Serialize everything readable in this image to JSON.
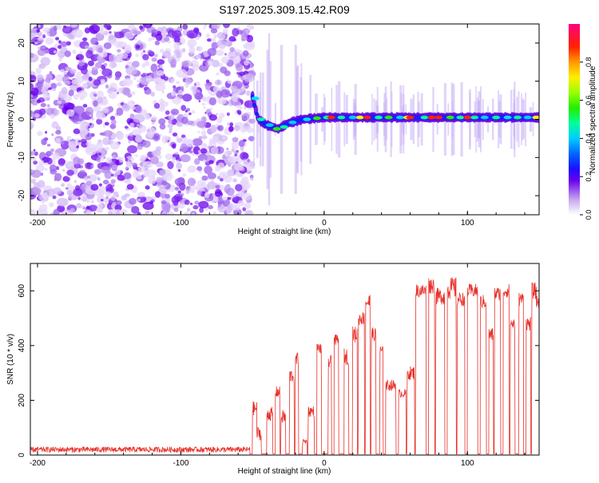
{
  "title": "S197.2025.309.15.42.R09",
  "chart_data": [
    {
      "type": "heatmap",
      "xlabel": "Height of straight line (km)",
      "ylabel": "Frequency (Hz)",
      "xlim": [
        -205,
        150
      ],
      "ylim": [
        -25,
        25
      ],
      "xticks": [
        -200,
        -100,
        0,
        100
      ],
      "xtick_labels": [
        "-200",
        "-100",
        "0",
        "100"
      ],
      "yticks": [
        -20,
        -10,
        0,
        10,
        20
      ],
      "ytick_labels": [
        "-20",
        "-10",
        "0",
        "10",
        "20"
      ],
      "colorbar": {
        "label": "Normalized spectral amplitude",
        "range": [
          0,
          1
        ],
        "ticks": [
          0,
          0.2,
          0.4,
          0.6,
          0.8
        ],
        "tick_labels": [
          "0.0",
          "0.2",
          "0.4",
          "0.6",
          "0.8"
        ]
      },
      "noise_region_x": [
        -205,
        -50
      ],
      "signal_track": [
        {
          "x": -50,
          "f": 6
        },
        {
          "x": -46,
          "f": 0
        },
        {
          "x": -40,
          "f": -1.5
        },
        {
          "x": -32,
          "f": -2.5
        },
        {
          "x": -25,
          "f": -1
        },
        {
          "x": -15,
          "f": 0
        },
        {
          "x": 0,
          "f": 0.5
        },
        {
          "x": 150,
          "f": 0.5
        }
      ]
    },
    {
      "type": "line",
      "xlabel": "Height of straight line (km)",
      "ylabel": "SNR (10 * v/v)",
      "xlim": [
        -205,
        150
      ],
      "ylim": [
        0,
        700
      ],
      "xticks": [
        -200,
        -100,
        0,
        100
      ],
      "xtick_labels": [
        "-200",
        "-100",
        "0",
        "100"
      ],
      "yticks": [
        0,
        200,
        400,
        600
      ],
      "ytick_labels": [
        "0",
        "200",
        "400",
        "600"
      ],
      "line_color": "#e8302a",
      "series": [
        {
          "segments": [
            {
              "x0": -205,
              "x1": -52,
              "level": 20,
              "noise": 10
            },
            {
              "x0": -50,
              "x1": -47,
              "level": 170,
              "noise": 25
            },
            {
              "x0": -47,
              "x1": -44,
              "level": 80,
              "noise": 25
            },
            {
              "x0": -40,
              "x1": -36,
              "level": 150,
              "noise": 25
            },
            {
              "x0": -34,
              "x1": -31,
              "level": 230,
              "noise": 20
            },
            {
              "x0": -30,
              "x1": -27,
              "level": 140,
              "noise": 25
            },
            {
              "x0": -24,
              "x1": -21,
              "level": 290,
              "noise": 25
            },
            {
              "x0": -20,
              "x1": -18,
              "level": 350,
              "noise": 25
            },
            {
              "x0": -15,
              "x1": -12,
              "level": 50,
              "noise": 10
            },
            {
              "x0": -11,
              "x1": -7,
              "level": 160,
              "noise": 20
            },
            {
              "x0": -5,
              "x1": -2,
              "level": 390,
              "noise": 20
            },
            {
              "x0": 3,
              "x1": 5,
              "level": 340,
              "noise": 25
            },
            {
              "x0": 7,
              "x1": 10,
              "level": 420,
              "noise": 20
            },
            {
              "x0": 14,
              "x1": 17,
              "level": 360,
              "noise": 30
            },
            {
              "x0": 20,
              "x1": 23,
              "level": 440,
              "noise": 30
            },
            {
              "x0": 24,
              "x1": 28,
              "level": 500,
              "noise": 25
            },
            {
              "x0": 29,
              "x1": 32,
              "level": 560,
              "noise": 30
            },
            {
              "x0": 33,
              "x1": 36,
              "level": 440,
              "noise": 25
            },
            {
              "x0": 39,
              "x1": 41,
              "level": 380,
              "noise": 20
            },
            {
              "x0": 43,
              "x1": 50,
              "level": 255,
              "noise": 20
            },
            {
              "x0": 52,
              "x1": 57,
              "level": 225,
              "noise": 15
            },
            {
              "x0": 58,
              "x1": 63,
              "level": 300,
              "noise": 25
            },
            {
              "x0": 64,
              "x1": 71,
              "level": 600,
              "noise": 25
            },
            {
              "x0": 73,
              "x1": 77,
              "level": 620,
              "noise": 30
            },
            {
              "x0": 78,
              "x1": 84,
              "level": 580,
              "noise": 30
            },
            {
              "x0": 86,
              "x1": 92,
              "level": 610,
              "noise": 40
            },
            {
              "x0": 93,
              "x1": 98,
              "level": 570,
              "noise": 25
            },
            {
              "x0": 100,
              "x1": 107,
              "level": 600,
              "noise": 25
            },
            {
              "x0": 109,
              "x1": 113,
              "level": 560,
              "noise": 25
            },
            {
              "x0": 115,
              "x1": 118,
              "level": 440,
              "noise": 25
            },
            {
              "x0": 119,
              "x1": 123,
              "level": 590,
              "noise": 25
            },
            {
              "x0": 125,
              "x1": 129,
              "level": 600,
              "noise": 25
            },
            {
              "x0": 130,
              "x1": 133,
              "level": 480,
              "noise": 25
            },
            {
              "x0": 136,
              "x1": 139,
              "level": 570,
              "noise": 25
            },
            {
              "x0": 141,
              "x1": 144,
              "level": 480,
              "noise": 25
            },
            {
              "x0": 145,
              "x1": 148,
              "level": 600,
              "noise": 30
            },
            {
              "x0": 148,
              "x1": 150,
              "level": 560,
              "noise": 25
            }
          ],
          "baseline": 3
        }
      ]
    }
  ]
}
